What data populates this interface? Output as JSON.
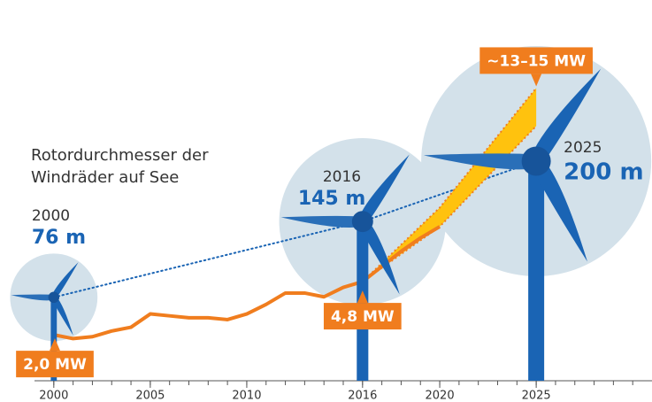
{
  "chart_data": {
    "type": "line",
    "title": "Rotordurchmesser der Windräder auf See",
    "xlim": [
      1999,
      2031
    ],
    "ylim": [
      0,
      16
    ],
    "xticks": [
      2000,
      2005,
      2010,
      2016,
      2020,
      2025
    ],
    "xticks_minor": [
      2000,
      2001,
      2002,
      2003,
      2004,
      2005,
      2006,
      2007,
      2008,
      2009,
      2010,
      2011,
      2012,
      2013,
      2014,
      2015,
      2016,
      2017,
      2018,
      2019,
      2020,
      2021,
      2022,
      2023,
      2024,
      2025,
      2026,
      2027,
      2028,
      2029,
      2030
    ],
    "series": [
      {
        "color": "#f07d1e",
        "x": [
          2000,
          2001,
          2002,
          2003,
          2004,
          2005,
          2006,
          2007,
          2008,
          2009,
          2010,
          2011,
          2012,
          2013,
          2014,
          2015,
          2016,
          2017,
          2018,
          2019,
          2020
        ],
        "values": [
          2.0,
          1.8,
          1.9,
          2.2,
          2.4,
          3.1,
          3.0,
          2.9,
          2.9,
          2.8,
          3.1,
          3.6,
          4.2,
          4.2,
          4.0,
          4.5,
          4.8,
          5.6,
          6.4,
          7.1,
          7.7
        ],
        "value_labels": [
          "2,0 MW",
          null,
          null,
          null,
          null,
          null,
          null,
          null,
          null,
          null,
          null,
          null,
          null,
          null,
          null,
          null,
          "4,8 MW",
          null,
          null,
          null,
          null
        ]
      }
    ],
    "band": {
      "color": "#ffc20e",
      "x": [
        2016,
        2020,
        2025
      ],
      "lower": [
        4.8,
        7.7,
        13
      ],
      "upper": [
        4.8,
        8.7,
        15
      ],
      "label": "~13–15 MW"
    },
    "turbines": {
      "color": "#1a64b4",
      "circle_color": "#d3e1ea",
      "years": [
        2000,
        2016,
        2025
      ],
      "diameters": [
        76,
        145,
        200
      ],
      "value_labels": [
        "76 m",
        "145 m",
        "200 m"
      ]
    }
  }
}
